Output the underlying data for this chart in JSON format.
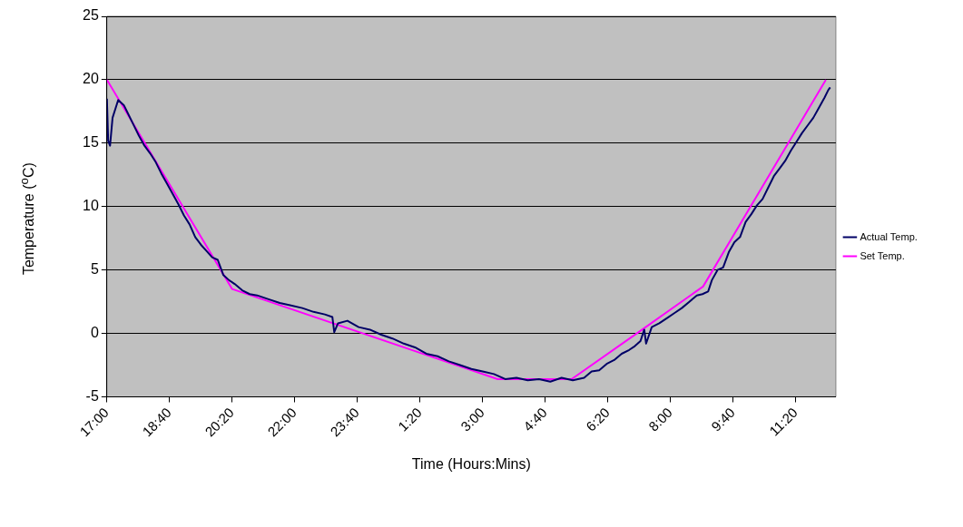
{
  "chart_data": {
    "type": "line",
    "xlabel": "Time (Hours:Mins)",
    "ylabel": "Temperature ($^{o}$C)",
    "xlim": [
      "2000-01-01T17:00",
      "2000-01-02T12:24"
    ],
    "xticks": [
      {
        "value": "2000-01-01T17:00",
        "label": "17:00"
      },
      {
        "value": "2000-01-01T18:40",
        "label": "18:40"
      },
      {
        "value": "2000-01-01T20:20",
        "label": "20:20"
      },
      {
        "value": "2000-01-01T22:00",
        "label": "22:00"
      },
      {
        "value": "2000-01-01T23:40",
        "label": "23:40"
      },
      {
        "value": "2000-01-02T01:20",
        "label": "1:20"
      },
      {
        "value": "2000-01-02T03:00",
        "label": "3:00"
      },
      {
        "value": "2000-01-02T04:40",
        "label": "4:40"
      },
      {
        "value": "2000-01-02T06:20",
        "label": "6:20"
      },
      {
        "value": "2000-01-02T08:00",
        "label": "8:00"
      },
      {
        "value": "2000-01-02T09:40",
        "label": "9:40"
      },
      {
        "value": "2000-01-02T11:20",
        "label": "11:20"
      }
    ],
    "ylim": [
      -5,
      25
    ],
    "yticks": [
      -5,
      0,
      5,
      10,
      15,
      20,
      25
    ],
    "grid": "y",
    "legend": "right",
    "marker": "none",
    "line_style": "solid",
    "series": [
      {
        "name": "Actual Temp.",
        "color": "#000066",
        "x": [
          "2000-01-01T17:00",
          "2000-01-01T17:02",
          "2000-01-01T17:05",
          "2000-01-01T17:09",
          "2000-01-01T17:18",
          "2000-01-01T17:27",
          "2000-01-01T17:33",
          "2000-01-01T17:42",
          "2000-01-01T17:51",
          "2000-01-01T18:00",
          "2000-01-01T18:09",
          "2000-01-01T18:18",
          "2000-01-01T18:27",
          "2000-01-01T18:36",
          "2000-01-01T18:45",
          "2000-01-01T18:54",
          "2000-01-01T19:03",
          "2000-01-01T19:12",
          "2000-01-01T19:21",
          "2000-01-01T19:30",
          "2000-01-01T19:39",
          "2000-01-01T19:48",
          "2000-01-01T19:57",
          "2000-01-01T20:06",
          "2000-01-01T20:15",
          "2000-01-01T20:24",
          "2000-01-01T20:36",
          "2000-01-01T20:48",
          "2000-01-01T21:00",
          "2000-01-01T21:18",
          "2000-01-01T21:36",
          "2000-01-01T21:54",
          "2000-01-01T22:12",
          "2000-01-01T22:30",
          "2000-01-01T22:48",
          "2000-01-01T23:00",
          "2000-01-01T23:03",
          "2000-01-01T23:09",
          "2000-01-01T23:24",
          "2000-01-01T23:42",
          "2000-01-02T00:00",
          "2000-01-02T00:18",
          "2000-01-02T00:36",
          "2000-01-02T00:54",
          "2000-01-02T01:12",
          "2000-01-02T01:30",
          "2000-01-02T01:48",
          "2000-01-02T02:06",
          "2000-01-02T02:24",
          "2000-01-02T02:42",
          "2000-01-02T03:00",
          "2000-01-02T03:18",
          "2000-01-02T03:36",
          "2000-01-02T03:54",
          "2000-01-02T04:12",
          "2000-01-02T04:30",
          "2000-01-02T04:48",
          "2000-01-02T05:06",
          "2000-01-02T05:24",
          "2000-01-02T05:42",
          "2000-01-02T05:54",
          "2000-01-02T06:06",
          "2000-01-02T06:18",
          "2000-01-02T06:30",
          "2000-01-02T06:42",
          "2000-01-02T06:54",
          "2000-01-02T07:03",
          "2000-01-02T07:12",
          "2000-01-02T07:18",
          "2000-01-02T07:21",
          "2000-01-02T07:30",
          "2000-01-02T07:42",
          "2000-01-02T07:54",
          "2000-01-02T08:06",
          "2000-01-02T08:18",
          "2000-01-02T08:30",
          "2000-01-02T08:42",
          "2000-01-02T08:51",
          "2000-01-02T09:00",
          "2000-01-02T09:06",
          "2000-01-02T09:15",
          "2000-01-02T09:24",
          "2000-01-02T09:33",
          "2000-01-02T09:42",
          "2000-01-02T09:51",
          "2000-01-02T10:00",
          "2000-01-02T10:09",
          "2000-01-02T10:18",
          "2000-01-02T10:27",
          "2000-01-02T10:36",
          "2000-01-02T10:45",
          "2000-01-02T10:54",
          "2000-01-02T11:03",
          "2000-01-02T11:12",
          "2000-01-02T11:21",
          "2000-01-02T11:30",
          "2000-01-02T11:39",
          "2000-01-02T11:48",
          "2000-01-02T11:57",
          "2000-01-02T12:06",
          "2000-01-02T12:12",
          "2000-01-02T12:15"
        ],
        "values": [
          18.5,
          15.2,
          14.8,
          17,
          18.4,
          18,
          17.4,
          16.5,
          15.6,
          14.8,
          14.2,
          13.5,
          12.6,
          11.8,
          11,
          10.2,
          9.3,
          8.6,
          7.6,
          7,
          6.5,
          6,
          5.8,
          4.6,
          4.2,
          3.9,
          3.4,
          3.1,
          3,
          2.7,
          2.4,
          2.2,
          2,
          1.7,
          1.5,
          1.3,
          0.1,
          0.8,
          1,
          0.5,
          0.3,
          -0.1,
          -0.4,
          -0.8,
          -1.1,
          -1.6,
          -1.8,
          -2.2,
          -2.5,
          -2.8,
          -3,
          -3.2,
          -3.6,
          -3.5,
          -3.7,
          -3.6,
          -3.8,
          -3.5,
          -3.7,
          -3.5,
          -3,
          -2.9,
          -2.4,
          -2.1,
          -1.6,
          -1.3,
          -1,
          -0.6,
          0.3,
          -0.8,
          0.5,
          0.8,
          1.2,
          1.6,
          2,
          2.5,
          3,
          3.1,
          3.3,
          4.2,
          5,
          5.2,
          6.4,
          7.2,
          7.6,
          8.8,
          9.4,
          10.1,
          10.6,
          11.5,
          12.4,
          13,
          13.6,
          14.4,
          15.1,
          15.8,
          16.4,
          17,
          17.8,
          18.6,
          19.2,
          19.4
        ]
      },
      {
        "name": "Set Temp.",
        "color": "#ff00ff",
        "x": [
          "2000-01-01T17:00",
          "2000-01-01T20:20",
          "2000-01-02T03:24",
          "2000-01-02T05:22",
          "2000-01-02T07:06",
          "2000-01-02T08:52",
          "2000-01-02T12:08"
        ],
        "values": [
          20,
          3.5,
          -3.6,
          -3.6,
          0,
          3.7,
          20
        ]
      }
    ]
  }
}
